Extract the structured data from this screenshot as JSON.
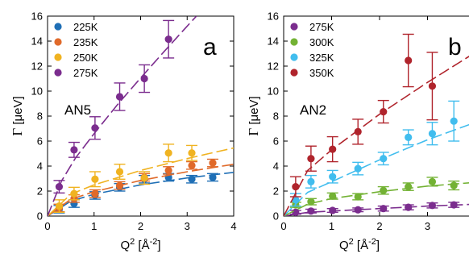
{
  "chart_data": [
    {
      "type": "scatter",
      "panel_label": "a",
      "sample_label": "AN5",
      "xlabel_main": "Q",
      "xlabel_sup": "2",
      "xlabel_unit": " [Å",
      "xlabel_unit_sup": "-2",
      "xlabel_close": "]",
      "ylabel_symbol": "Γ",
      "ylabel_unit": " [μeV]",
      "xlim": [
        0,
        4
      ],
      "ylim": [
        0,
        16
      ],
      "xticks": [
        "0",
        "1",
        "2",
        "3",
        "4"
      ],
      "yticks": [
        "0",
        "2",
        "4",
        "6",
        "8",
        "10",
        "12",
        "14",
        "16"
      ],
      "grid": false,
      "legend_position": "top-left",
      "series": [
        {
          "name": "225K",
          "color": "#1f6fb6",
          "x": [
            0.25,
            0.57,
            1.02,
            1.55,
            2.08,
            2.6,
            3.1,
            3.55
          ],
          "y": [
            0.55,
            1.0,
            1.65,
            2.3,
            2.95,
            3.1,
            2.95,
            3.1
          ],
          "err": [
            0.3,
            0.3,
            0.3,
            0.3,
            0.3,
            0.3,
            0.3,
            0.3
          ],
          "fit": [
            [
              0,
              0
            ],
            [
              0.5,
              1.2
            ],
            [
              1,
              1.75
            ],
            [
              2,
              2.5
            ],
            [
              3,
              3.05
            ],
            [
              4,
              3.5
            ]
          ]
        },
        {
          "name": "235K",
          "color": "#e06a2a",
          "x": [
            0.25,
            0.57,
            1.02,
            1.55,
            2.08,
            2.6,
            3.1,
            3.55
          ],
          "y": [
            0.65,
            1.4,
            1.8,
            2.45,
            3.1,
            3.65,
            4.05,
            4.25
          ],
          "err": [
            0.3,
            0.3,
            0.3,
            0.3,
            0.3,
            0.3,
            0.3,
            0.3
          ],
          "fit": [
            [
              0,
              0
            ],
            [
              0.5,
              1.35
            ],
            [
              1,
              1.95
            ],
            [
              2,
              2.85
            ],
            [
              3,
              3.55
            ],
            [
              4,
              4.15
            ]
          ]
        },
        {
          "name": "250K",
          "color": "#f0b321",
          "x": [
            0.25,
            0.57,
            1.02,
            1.55,
            2.08,
            2.6,
            3.1
          ],
          "y": [
            0.8,
            1.8,
            2.95,
            3.55,
            3.05,
            5.05,
            5.05
          ],
          "err": [
            0.5,
            0.5,
            0.6,
            0.6,
            0.5,
            0.7,
            0.6
          ],
          "fit": [
            [
              0,
              0
            ],
            [
              0.5,
              1.75
            ],
            [
              1,
              2.5
            ],
            [
              2,
              3.65
            ],
            [
              3,
              4.6
            ],
            [
              4,
              5.45
            ]
          ]
        },
        {
          "name": "275K",
          "color": "#7b2d8e",
          "x": [
            0.25,
            0.57,
            1.02,
            1.55,
            2.08,
            2.6
          ],
          "y": [
            2.35,
            5.3,
            7.05,
            9.55,
            11.0,
            14.15
          ],
          "err": [
            0.5,
            0.6,
            0.9,
            1.1,
            1.1,
            1.5
          ],
          "fit": [
            [
              0,
              0
            ],
            [
              0.3,
              2.8
            ],
            [
              0.6,
              4.65
            ],
            [
              1,
              6.6
            ],
            [
              1.5,
              8.9
            ],
            [
              2,
              11.05
            ],
            [
              2.5,
              13.15
            ],
            [
              3,
              15.2
            ],
            [
              3.2,
              16
            ]
          ]
        }
      ]
    },
    {
      "type": "scatter",
      "panel_label": "b",
      "sample_label": "AN2",
      "xlabel_main": "Q",
      "xlabel_sup": "2",
      "xlabel_unit": " [Å",
      "xlabel_unit_sup": "-2",
      "xlabel_close": "]",
      "ylabel_symbol": "Γ",
      "ylabel_unit": " [μeV]",
      "xlim": [
        0,
        4
      ],
      "ylim": [
        0,
        16
      ],
      "xticks": [
        "0",
        "1",
        "2",
        "3"
      ],
      "yticks": [
        "0",
        "2",
        "4",
        "6",
        "8",
        "10",
        "12",
        "14",
        "16"
      ],
      "grid": false,
      "legend_position": "top-left",
      "series": [
        {
          "name": "275K",
          "color": "#7b2d8e",
          "x": [
            0.25,
            0.57,
            1.02,
            1.55,
            2.08,
            2.6,
            3.1,
            3.55
          ],
          "y": [
            0.3,
            0.4,
            0.45,
            0.5,
            0.6,
            0.7,
            0.85,
            0.9
          ],
          "err": [
            0.15,
            0.15,
            0.15,
            0.15,
            0.2,
            0.2,
            0.2,
            0.2
          ],
          "fit": [
            [
              0,
              0
            ],
            [
              0.5,
              0.3
            ],
            [
              1,
              0.4
            ],
            [
              2,
              0.6
            ],
            [
              3,
              0.8
            ],
            [
              4,
              0.95
            ]
          ]
        },
        {
          "name": "300K",
          "color": "#73b234",
          "x": [
            0.25,
            0.57,
            1.02,
            1.55,
            2.08,
            2.6,
            3.1,
            3.55
          ],
          "y": [
            0.9,
            1.15,
            1.6,
            1.55,
            2.05,
            2.35,
            2.75,
            2.45
          ],
          "err": [
            0.2,
            0.25,
            0.25,
            0.25,
            0.3,
            0.3,
            0.35,
            0.35
          ],
          "fit": [
            [
              0,
              0
            ],
            [
              0.5,
              0.95
            ],
            [
              1,
              1.4
            ],
            [
              2,
              1.95
            ],
            [
              3,
              2.4
            ],
            [
              4,
              2.7
            ]
          ]
        },
        {
          "name": "325K",
          "color": "#41bdee",
          "x": [
            0.25,
            0.57,
            1.02,
            1.55,
            2.08,
            2.6,
            3.1,
            3.55
          ],
          "y": [
            1.3,
            2.75,
            3.15,
            3.8,
            4.6,
            6.3,
            6.6,
            7.6
          ],
          "err": [
            0.5,
            0.5,
            0.5,
            0.5,
            0.5,
            0.6,
            0.9,
            1.6
          ],
          "fit": [
            [
              0,
              0
            ],
            [
              0.5,
              1.9
            ],
            [
              1,
              2.75
            ],
            [
              2,
              4.5
            ],
            [
              3,
              6.1
            ],
            [
              4,
              7.5
            ]
          ]
        },
        {
          "name": "350K",
          "color": "#b0242c",
          "x": [
            0.25,
            0.57,
            1.02,
            1.55,
            2.08,
            2.6,
            3.1
          ],
          "y": [
            2.35,
            4.6,
            5.35,
            6.75,
            8.35,
            12.45,
            10.4
          ],
          "err": [
            0.8,
            1.0,
            1.0,
            1.0,
            0.9,
            2.1,
            2.7
          ],
          "fit": [
            [
              0,
              0
            ],
            [
              0.5,
              3.65
            ],
            [
              1,
              5.3
            ],
            [
              2,
              8.15
            ],
            [
              3,
              10.7
            ],
            [
              4,
              13.1
            ]
          ]
        }
      ]
    }
  ]
}
